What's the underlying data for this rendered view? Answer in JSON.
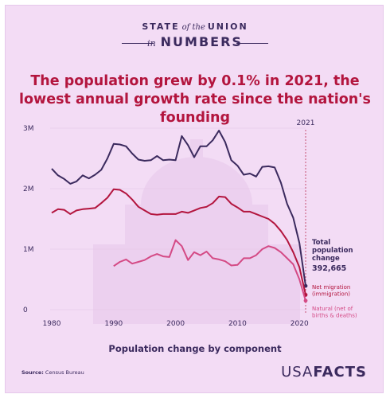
{
  "brand": {
    "line1_a": "STATE",
    "line1_b": "of the",
    "line1_c": "UNION",
    "line2_a": "in",
    "line2_b": "NUMBERS"
  },
  "headline": "The population grew by 0.1% in 2021, the lowest annual growth rate since the nation's founding",
  "source": {
    "label": "Source:",
    "value": "Census Bureau"
  },
  "logo": {
    "part1": "USA",
    "part2": "FACTS"
  },
  "colors": {
    "background": "#f3dcf5",
    "total": "#3b2a5e",
    "net_migration": "#b3153e",
    "natural": "#d44a85",
    "text": "#3b2a5e"
  },
  "chart_data": {
    "type": "line",
    "xlabel": "Population change by component",
    "ylabel": "",
    "xlim": [
      1980,
      2021
    ],
    "ylim": [
      0,
      3000000
    ],
    "xticks": [
      1980,
      1990,
      2000,
      2010,
      2020
    ],
    "xtick_labels": [
      "1980",
      "1990",
      "2000",
      "2010",
      "2020"
    ],
    "yticks": [
      0,
      1000000,
      2000000,
      3000000
    ],
    "ytick_labels": [
      "0",
      "1M",
      "2M",
      "3M"
    ],
    "reference_line": {
      "x": 2021,
      "label": "2021"
    },
    "series": [
      {
        "key": "total",
        "label_lines": [
          "Total",
          "population",
          "change"
        ],
        "value_label": "392,665",
        "color": "#3b2a5e",
        "x": [
          1980,
          1981,
          1982,
          1983,
          1984,
          1985,
          1986,
          1987,
          1988,
          1989,
          1990,
          1991,
          1992,
          1993,
          1994,
          1995,
          1996,
          1997,
          1998,
          1999,
          2000,
          2001,
          2002,
          2003,
          2004,
          2005,
          2006,
          2007,
          2008,
          2009,
          2010,
          2011,
          2012,
          2013,
          2014,
          2015,
          2016,
          2017,
          2018,
          2019,
          2020,
          2021
        ],
        "values": [
          2330000,
          2220000,
          2160000,
          2080000,
          2120000,
          2220000,
          2170000,
          2230000,
          2310000,
          2500000,
          2740000,
          2730000,
          2700000,
          2580000,
          2480000,
          2460000,
          2470000,
          2540000,
          2470000,
          2480000,
          2470000,
          2870000,
          2720000,
          2520000,
          2700000,
          2700000,
          2800000,
          2960000,
          2770000,
          2470000,
          2380000,
          2230000,
          2250000,
          2200000,
          2360000,
          2370000,
          2350000,
          2100000,
          1750000,
          1520000,
          1100000,
          392665
        ]
      },
      {
        "key": "net_migration",
        "label_lines": [
          "Net migration",
          "(immigration)"
        ],
        "color": "#b3153e",
        "x": [
          1980,
          1981,
          1982,
          1983,
          1984,
          1985,
          1986,
          1987,
          1988,
          1989,
          1990,
          1991,
          1992,
          1993,
          1994,
          1995,
          1996,
          1997,
          1998,
          1999,
          2000,
          2001,
          2002,
          2003,
          2004,
          2005,
          2006,
          2007,
          2008,
          2009,
          2010,
          2011,
          2012,
          2013,
          2014,
          2015,
          2016,
          2017,
          2018,
          2019,
          2020,
          2021
        ],
        "values": [
          1600000,
          1660000,
          1650000,
          1580000,
          1640000,
          1660000,
          1670000,
          1680000,
          1760000,
          1850000,
          1990000,
          1980000,
          1920000,
          1820000,
          1700000,
          1640000,
          1580000,
          1570000,
          1580000,
          1580000,
          1580000,
          1620000,
          1600000,
          1640000,
          1680000,
          1700000,
          1760000,
          1870000,
          1860000,
          1750000,
          1690000,
          1620000,
          1620000,
          1580000,
          1540000,
          1500000,
          1420000,
          1300000,
          1150000,
          950000,
          700000,
          245000
        ]
      },
      {
        "key": "natural",
        "label_lines": [
          "Natural (net of",
          "births & deaths)"
        ],
        "color": "#d44a85",
        "x": [
          1990,
          1991,
          1992,
          1993,
          1994,
          1995,
          1996,
          1997,
          1998,
          1999,
          2000,
          2001,
          2002,
          2003,
          2004,
          2005,
          2006,
          2007,
          2008,
          2009,
          2010,
          2011,
          2012,
          2013,
          2014,
          2015,
          2016,
          2017,
          2018,
          2019,
          2020,
          2021
        ],
        "values": [
          720000,
          790000,
          830000,
          760000,
          790000,
          820000,
          880000,
          920000,
          880000,
          870000,
          1150000,
          1050000,
          820000,
          950000,
          900000,
          960000,
          850000,
          830000,
          800000,
          730000,
          740000,
          850000,
          850000,
          900000,
          1000000,
          1050000,
          1020000,
          950000,
          850000,
          750000,
          500000,
          148000
        ]
      }
    ]
  }
}
